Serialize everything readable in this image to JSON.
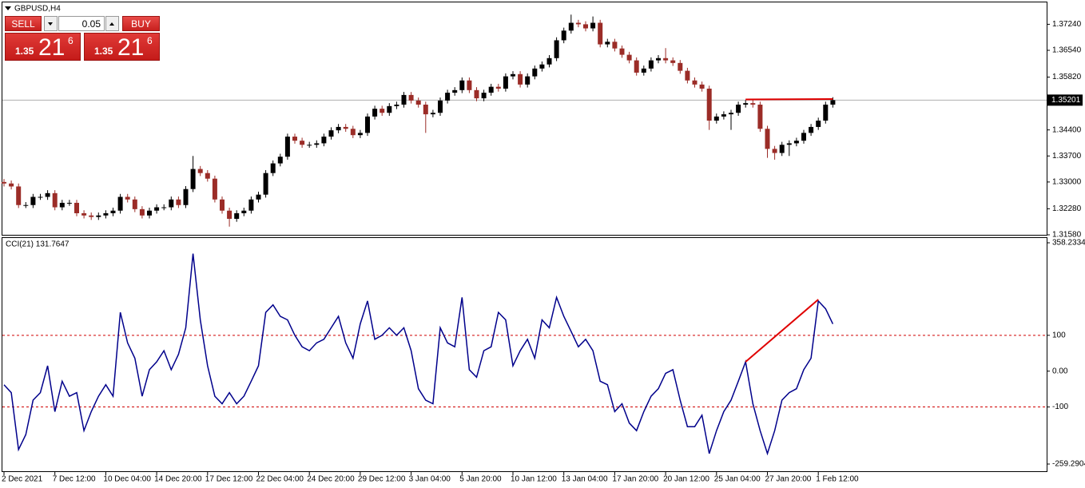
{
  "trade_panel": {
    "sell": "SELL",
    "buy": "BUY",
    "lot": "0.05",
    "sell_price": {
      "prefix": "1.35",
      "big": "21",
      "small": "6"
    },
    "buy_price": {
      "prefix": "1.35",
      "big": "21",
      "small": "6"
    }
  },
  "chart_data": [
    {
      "type": "candlestick",
      "title": "GBPUSD,H4",
      "up_color": "#000000",
      "down_color": "#9b2c27",
      "ylim": [
        1.3158,
        1.3785
      ],
      "yticks": [
        {
          "value": 1.3724,
          "label": "1.37240"
        },
        {
          "value": 1.3654,
          "label": "1.36540"
        },
        {
          "value": 1.3582,
          "label": "1.35820"
        },
        {
          "value": 1.344,
          "label": "1.34400"
        },
        {
          "value": 1.337,
          "label": "1.33700"
        },
        {
          "value": 1.33,
          "label": "1.33000"
        },
        {
          "value": 1.3228,
          "label": "1.32280"
        },
        {
          "value": 1.3158,
          "label": "1.31580"
        }
      ],
      "last_price": 1.35201,
      "open": [
        1.33,
        1.3296,
        1.3288,
        1.3238,
        1.3238,
        1.326,
        1.326,
        1.327,
        1.3232,
        1.3244,
        1.3244,
        1.3216,
        1.321,
        1.3206,
        1.321,
        1.3216,
        1.3223,
        1.326,
        1.3253,
        1.3227,
        1.321,
        1.3223,
        1.3232,
        1.3232,
        1.3253,
        1.3238,
        1.3281,
        1.3335,
        1.3324,
        1.3309,
        1.3253,
        1.3223,
        1.3201,
        1.3216,
        1.3223,
        1.3253,
        1.3266,
        1.3324,
        1.335,
        1.3368,
        1.3422,
        1.3411,
        1.34,
        1.34,
        1.3404,
        1.3422,
        1.3439,
        1.3448,
        1.3443,
        1.3426,
        1.3432,
        1.3476,
        1.3497,
        1.3486,
        1.3504,
        1.3508,
        1.3534,
        1.3519,
        1.3508,
        1.3482,
        1.3486,
        1.3519,
        1.354,
        1.3547,
        1.3573,
        1.3547,
        1.3525,
        1.354,
        1.3556,
        1.3551,
        1.3584,
        1.359,
        1.3562,
        1.3584,
        1.3605,
        1.3616,
        1.3633,
        1.3681,
        1.3707,
        1.3728,
        1.3724,
        1.3713,
        1.3728,
        1.367,
        1.3677,
        1.3659,
        1.3642,
        1.3627,
        1.3594,
        1.3605,
        1.3627,
        1.3633,
        1.3627,
        1.362,
        1.3599,
        1.3573,
        1.3562,
        1.3551,
        1.3465,
        1.3476,
        1.3482,
        1.3486,
        1.3508,
        1.3512,
        1.3508,
        1.3443,
        1.3389,
        1.3378,
        1.34,
        1.3404,
        1.3411,
        1.3432,
        1.3448,
        1.3465,
        1.3508
      ],
      "high": [
        1.3308,
        1.3304,
        1.3296,
        1.3246,
        1.3268,
        1.3268,
        1.3278,
        1.3278,
        1.3252,
        1.3252,
        1.3252,
        1.3224,
        1.3218,
        1.3218,
        1.3224,
        1.3231,
        1.3268,
        1.3268,
        1.3261,
        1.3235,
        1.3231,
        1.324,
        1.324,
        1.3261,
        1.3261,
        1.3289,
        1.337,
        1.3343,
        1.3332,
        1.3317,
        1.3261,
        1.3231,
        1.3224,
        1.3231,
        1.3261,
        1.3274,
        1.3332,
        1.3358,
        1.3376,
        1.343,
        1.343,
        1.3419,
        1.3408,
        1.3412,
        1.343,
        1.3447,
        1.3456,
        1.3456,
        1.3451,
        1.344,
        1.3484,
        1.3505,
        1.3505,
        1.3512,
        1.3516,
        1.3542,
        1.3542,
        1.3527,
        1.3516,
        1.3494,
        1.3527,
        1.3548,
        1.3555,
        1.3581,
        1.3581,
        1.3555,
        1.3548,
        1.3564,
        1.3564,
        1.3592,
        1.3598,
        1.3598,
        1.3592,
        1.3613,
        1.3624,
        1.3641,
        1.3689,
        1.3715,
        1.375,
        1.3736,
        1.3732,
        1.3745,
        1.3736,
        1.3685,
        1.3685,
        1.3667,
        1.365,
        1.3635,
        1.3613,
        1.3635,
        1.3641,
        1.366,
        1.3635,
        1.3628,
        1.3607,
        1.3581,
        1.357,
        1.3559,
        1.3484,
        1.349,
        1.3494,
        1.3516,
        1.352,
        1.352,
        1.3516,
        1.3451,
        1.3397,
        1.3408,
        1.3412,
        1.3419,
        1.344,
        1.3456,
        1.3473,
        1.3516,
        1.3528
      ],
      "low": [
        1.3288,
        1.328,
        1.323,
        1.323,
        1.323,
        1.3252,
        1.3252,
        1.3224,
        1.3224,
        1.3236,
        1.3208,
        1.3202,
        1.3198,
        1.3198,
        1.3202,
        1.3208,
        1.3215,
        1.3245,
        1.3219,
        1.3202,
        1.3202,
        1.3215,
        1.3224,
        1.3224,
        1.323,
        1.323,
        1.3273,
        1.3316,
        1.3301,
        1.3245,
        1.3215,
        1.318,
        1.3193,
        1.3208,
        1.3215,
        1.3245,
        1.3258,
        1.3316,
        1.3342,
        1.336,
        1.3403,
        1.3392,
        1.3392,
        1.3392,
        1.3396,
        1.3414,
        1.3431,
        1.3435,
        1.3418,
        1.3418,
        1.3424,
        1.3468,
        1.3478,
        1.3478,
        1.3496,
        1.35,
        1.3511,
        1.35,
        1.3432,
        1.3474,
        1.3478,
        1.3511,
        1.3532,
        1.3539,
        1.3539,
        1.3517,
        1.3517,
        1.3532,
        1.3543,
        1.3543,
        1.3576,
        1.3554,
        1.3554,
        1.3576,
        1.3597,
        1.3608,
        1.3625,
        1.3673,
        1.3699,
        1.3716,
        1.3705,
        1.3705,
        1.3662,
        1.3662,
        1.3651,
        1.3634,
        1.3619,
        1.3586,
        1.3586,
        1.3597,
        1.3619,
        1.3619,
        1.3612,
        1.3591,
        1.3565,
        1.3554,
        1.3543,
        1.344,
        1.3457,
        1.3468,
        1.344,
        1.3478,
        1.35,
        1.35,
        1.3435,
        1.3365,
        1.336,
        1.337,
        1.337,
        1.3396,
        1.3403,
        1.3424,
        1.344,
        1.3457,
        1.35
      ],
      "close": [
        1.3296,
        1.3288,
        1.3238,
        1.3238,
        1.326,
        1.326,
        1.327,
        1.3232,
        1.3244,
        1.3244,
        1.3216,
        1.321,
        1.3206,
        1.321,
        1.3216,
        1.3223,
        1.326,
        1.3253,
        1.3227,
        1.321,
        1.3223,
        1.3232,
        1.3232,
        1.3253,
        1.3238,
        1.3281,
        1.3335,
        1.3324,
        1.3309,
        1.3253,
        1.3223,
        1.3201,
        1.3216,
        1.3223,
        1.3253,
        1.3266,
        1.3324,
        1.335,
        1.3368,
        1.3422,
        1.3411,
        1.34,
        1.34,
        1.3404,
        1.3422,
        1.3439,
        1.3448,
        1.3443,
        1.3426,
        1.3432,
        1.3476,
        1.3497,
        1.3486,
        1.3504,
        1.3508,
        1.3534,
        1.3519,
        1.3508,
        1.3482,
        1.3486,
        1.3519,
        1.354,
        1.3547,
        1.3573,
        1.3547,
        1.3525,
        1.354,
        1.3556,
        1.3551,
        1.3584,
        1.359,
        1.3562,
        1.3584,
        1.3605,
        1.3616,
        1.3633,
        1.3681,
        1.3707,
        1.3728,
        1.3724,
        1.3713,
        1.3728,
        1.367,
        1.3677,
        1.3659,
        1.3642,
        1.3627,
        1.3594,
        1.3605,
        1.3627,
        1.3633,
        1.3627,
        1.362,
        1.3599,
        1.3573,
        1.3562,
        1.3551,
        1.3465,
        1.3476,
        1.3482,
        1.3486,
        1.3508,
        1.3512,
        1.3508,
        1.3443,
        1.3389,
        1.3378,
        1.34,
        1.3404,
        1.3411,
        1.3432,
        1.3448,
        1.3465,
        1.3508,
        1.352
      ],
      "trendlines": [
        {
          "x": [
            102,
            114
          ],
          "y": [
            1.3522,
            1.3523
          ],
          "color": "#e00000"
        }
      ]
    },
    {
      "type": "line",
      "title": "CCI(21) 131.7647",
      "ylim": [
        -259.2904,
        358.2334
      ],
      "yticks": [
        358.2334,
        100,
        {
          "value": 0,
          "label": "0.00"
        },
        -100,
        -259.2904
      ],
      "levels": [
        100,
        -100
      ],
      "level_color": "#d00000",
      "categories": [
        "2 Dec 2021",
        null,
        null,
        null,
        null,
        null,
        null,
        "7 Dec 12:00",
        null,
        null,
        null,
        null,
        null,
        null,
        "10 Dec 04:00",
        null,
        null,
        null,
        null,
        null,
        null,
        "14 Dec 20:00",
        null,
        null,
        null,
        null,
        null,
        null,
        "17 Dec 12:00",
        null,
        null,
        null,
        null,
        null,
        null,
        "22 Dec 04:00",
        null,
        null,
        null,
        null,
        null,
        null,
        "24 Dec 20:00",
        null,
        null,
        null,
        null,
        null,
        null,
        "29 Dec 12:00",
        null,
        null,
        null,
        null,
        null,
        null,
        "3 Jan 04:00",
        null,
        null,
        null,
        null,
        null,
        null,
        "5 Jan 20:00",
        null,
        null,
        null,
        null,
        null,
        null,
        "10 Jan 12:00",
        null,
        null,
        null,
        null,
        null,
        null,
        "13 Jan 04:00",
        null,
        null,
        null,
        null,
        null,
        null,
        "17 Jan 20:00",
        null,
        null,
        null,
        null,
        null,
        null,
        "20 Jan 12:00",
        null,
        null,
        null,
        null,
        null,
        null,
        "25 Jan 04:00",
        null,
        null,
        null,
        null,
        null,
        null,
        "27 Jan 20:00",
        null,
        null,
        null,
        null,
        null,
        null,
        "1 Feb 12:00",
        null,
        null
      ],
      "series": [
        {
          "color": "#00008b",
          "values": [
            -38,
            -60,
            -219,
            -177,
            -81,
            -60,
            15,
            -113,
            -28,
            -70,
            -60,
            -166,
            -113,
            -70,
            -38,
            -70,
            164,
            79,
            36,
            -70,
            4,
            26,
            57,
            4,
            47,
            121,
            328,
            143,
            15,
            -70,
            -91,
            -60,
            -91,
            -70,
            -28,
            15,
            164,
            185,
            153,
            143,
            100,
            68,
            57,
            79,
            89,
            121,
            153,
            79,
            36,
            132,
            196,
            89,
            100,
            121,
            100,
            121,
            57,
            -49,
            -81,
            -91,
            121,
            79,
            68,
            206,
            4,
            -17,
            57,
            68,
            164,
            143,
            15,
            57,
            89,
            36,
            143,
            121,
            206,
            153,
            111,
            68,
            89,
            57,
            -28,
            -38,
            -113,
            -91,
            -145,
            -166,
            -113,
            -70,
            -49,
            -6,
            4,
            -81,
            -155,
            -155,
            -123,
            -230,
            -166,
            -113,
            -81,
            -28,
            26,
            -91,
            -166,
            -230,
            -166,
            -81,
            -60,
            -49,
            4,
            36,
            196,
            174,
            131.76
          ]
        }
      ],
      "trendlines": [
        {
          "x": [
            102,
            112
          ],
          "y": [
            26,
            200
          ],
          "color": "#e00000"
        }
      ]
    }
  ]
}
